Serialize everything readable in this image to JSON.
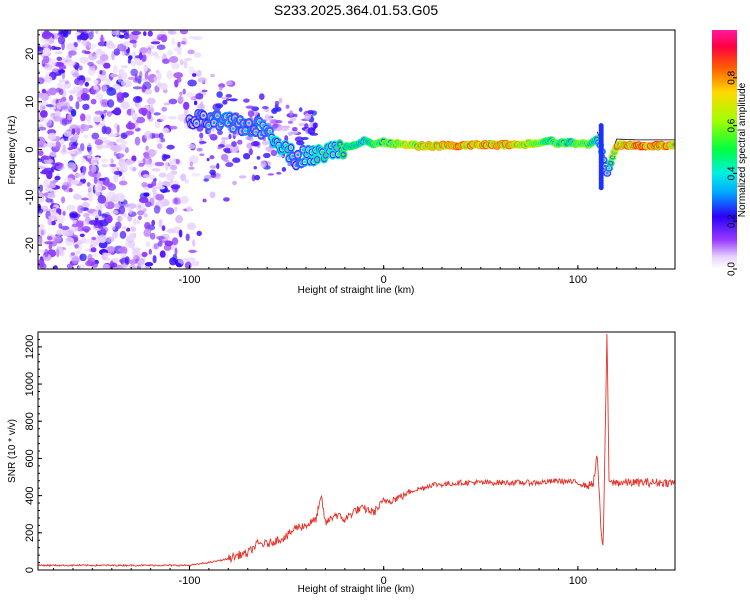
{
  "figure": {
    "title": "S233.2025.364.01.53.G05"
  },
  "chart_data": [
    {
      "type": "heatmap",
      "panel": "spectrogram",
      "xlabel": "Height of straight line (km)",
      "ylabel": "Frequency (Hz)",
      "xlim": [
        -178,
        150
      ],
      "ylim": [
        -25,
        25
      ],
      "x_ticks": [
        -100,
        0,
        100
      ],
      "x_tick_labels": [
        "-100",
        "0",
        "100"
      ],
      "y_ticks": [
        -20,
        -10,
        0,
        10,
        20
      ],
      "y_tick_labels": [
        "-20",
        "-10",
        "0",
        "10",
        "20"
      ],
      "colorbar": {
        "label": "Normalized spectral amplitude",
        "range": [
          0.0,
          1.0
        ],
        "ticks": [
          0.0,
          0.2,
          0.4,
          0.6,
          0.8
        ],
        "tick_labels": [
          "0.0",
          "0.2",
          "0.4",
          "0.6",
          "0.8"
        ]
      },
      "ridge": {
        "x": [
          -100,
          -90,
          -80,
          -70,
          -60,
          -50,
          -45,
          -40,
          -35,
          -30,
          -25,
          -20,
          -15,
          -10,
          -5,
          0,
          10,
          20,
          30,
          40,
          50,
          60,
          70,
          80,
          85,
          90,
          95,
          100,
          105,
          110,
          112,
          115,
          120,
          130,
          140,
          150
        ],
        "freq": [
          6,
          6,
          5.5,
          5,
          4,
          0,
          -2,
          -1,
          -1.5,
          -0.5,
          0,
          0.5,
          1,
          2,
          1,
          1.5,
          1,
          0.7,
          0.8,
          0.8,
          1,
          1,
          1,
          1.5,
          2,
          1.2,
          1.5,
          1.3,
          1,
          2.5,
          0,
          -5,
          1,
          0.8,
          0.8,
          0.8
        ],
        "amplitude": [
          0.3,
          0.35,
          0.4,
          0.35,
          0.4,
          0.5,
          0.3,
          0.45,
          0.5,
          0.5,
          0.45,
          0.6,
          0.55,
          0.5,
          0.6,
          0.7,
          0.75,
          0.85,
          0.9,
          0.9,
          0.9,
          0.9,
          0.85,
          0.7,
          0.6,
          0.65,
          0.6,
          0.65,
          0.7,
          0.55,
          0.4,
          0.3,
          0.95,
          0.95,
          0.95,
          0.95
        ]
      },
      "noise_region_x": [
        -178,
        -95
      ],
      "noise_freq_range": [
        -25,
        25
      ]
    },
    {
      "type": "line",
      "panel": "snr",
      "xlabel": "Height of straight line (km)",
      "ylabel": "SNR (10 * v/v)",
      "xlim": [
        -178,
        150
      ],
      "ylim": [
        0,
        1280
      ],
      "x_ticks": [
        -100,
        0,
        100
      ],
      "x_tick_labels": [
        "-100",
        "0",
        "100"
      ],
      "y_ticks": [
        0,
        200,
        400,
        600,
        800,
        1000,
        1200
      ],
      "y_tick_labels": [
        "0",
        "200",
        "400",
        "600",
        "800",
        "1000",
        "1200"
      ],
      "series": [
        {
          "name": "SNR",
          "color": "#e8332b",
          "x": [
            -178,
            -160,
            -140,
            -120,
            -100,
            -90,
            -80,
            -75,
            -70,
            -65,
            -60,
            -55,
            -50,
            -45,
            -40,
            -35,
            -32,
            -30,
            -25,
            -20,
            -15,
            -10,
            -5,
            0,
            5,
            10,
            15,
            20,
            25,
            30,
            40,
            50,
            60,
            70,
            80,
            90,
            100,
            105,
            108,
            110,
            111,
            112,
            113,
            114,
            115,
            116,
            117,
            118,
            120,
            130,
            140,
            150
          ],
          "y": [
            25,
            25,
            25,
            25,
            25,
            40,
            60,
            80,
            90,
            140,
            140,
            160,
            180,
            230,
            240,
            270,
            390,
            250,
            300,
            270,
            320,
            330,
            310,
            370,
            380,
            400,
            430,
            440,
            460,
            460,
            470,
            470,
            470,
            470,
            470,
            480,
            470,
            450,
            470,
            620,
            400,
            200,
            100,
            700,
            1300,
            480,
            470,
            470,
            470,
            470,
            470,
            470
          ]
        }
      ]
    }
  ],
  "colors": {
    "snr_line": "#e8332b",
    "frame": "#000000",
    "ridge_line": "#000000"
  }
}
